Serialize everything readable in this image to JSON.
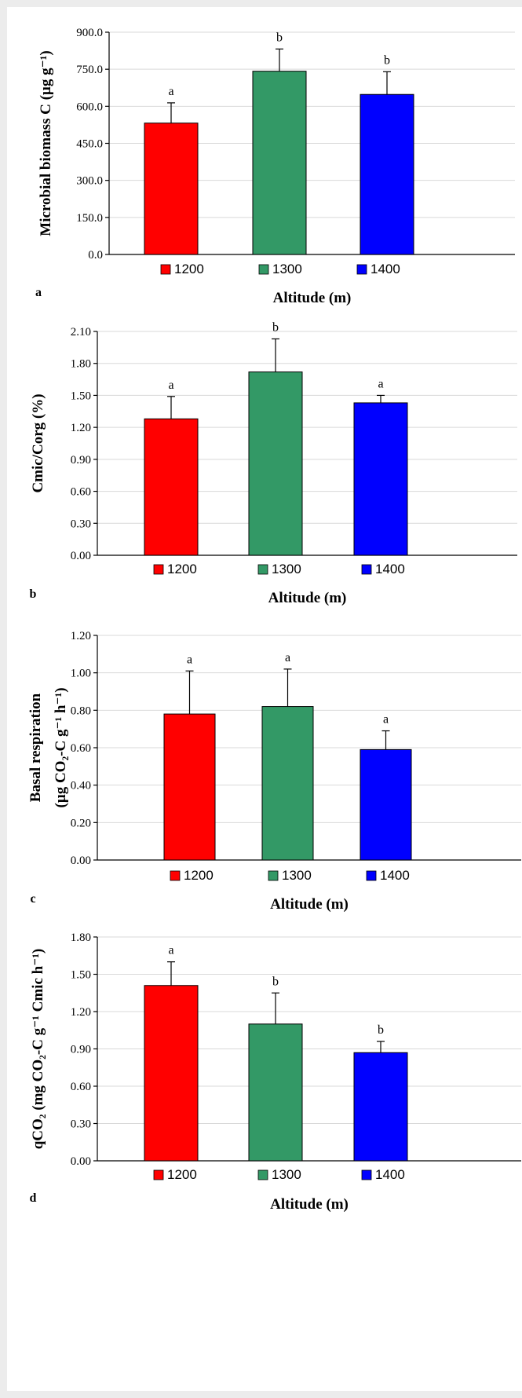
{
  "colors": {
    "1200": "#ff0000",
    "1300": "#339966",
    "1400": "#0000ff"
  },
  "chart_data": [
    {
      "type": "bar",
      "panel": "a",
      "categories": [
        "1200",
        "1300",
        "1400"
      ],
      "values": [
        532,
        742,
        648
      ],
      "errors": [
        82,
        90,
        92
      ],
      "significance": [
        "a",
        "b",
        "b"
      ],
      "ylim": [
        0,
        900
      ],
      "yticks": [
        "0.0",
        "150.0",
        "300.0",
        "450.0",
        "600.0",
        "750.0",
        "900.0"
      ],
      "ylabel": "Microbial biomass C (µg g⁻¹)",
      "xlabel": "Altitude (m)",
      "legend": [
        "1200",
        "1300",
        "1400"
      ],
      "grid": true
    },
    {
      "type": "bar",
      "panel": "b",
      "categories": [
        "1200",
        "1300",
        "1400"
      ],
      "values": [
        1.28,
        1.72,
        1.43
      ],
      "errors": [
        0.21,
        0.31,
        0.07
      ],
      "significance": [
        "a",
        "b",
        "a"
      ],
      "ylim": [
        0,
        2.1
      ],
      "yticks": [
        "0.00",
        "0.30",
        "0.60",
        "0.90",
        "1.20",
        "1.50",
        "1.80",
        "2.10"
      ],
      "ylabel": "Cmic/Corg (%)",
      "xlabel": "Altitude (m)",
      "legend": [
        "1200",
        "1300",
        "1400"
      ],
      "grid": true
    },
    {
      "type": "bar",
      "panel": "c",
      "categories": [
        "1200",
        "1300",
        "1400"
      ],
      "values": [
        0.78,
        0.82,
        0.59
      ],
      "errors": [
        0.23,
        0.2,
        0.1
      ],
      "significance": [
        "a",
        "a",
        "a"
      ],
      "ylim": [
        0,
        1.2
      ],
      "yticks": [
        "0.00",
        "0.20",
        "0.40",
        "0.60",
        "0.80",
        "1.00",
        "1.20"
      ],
      "ylabel": [
        "Basal respiration",
        "(µg CO₂-C g⁻¹ h⁻¹)"
      ],
      "xlabel": "Altitude (m)",
      "legend": [
        "1200",
        "1300",
        "1400"
      ],
      "grid": true
    },
    {
      "type": "bar",
      "panel": "d",
      "categories": [
        "1200",
        "1300",
        "1400"
      ],
      "values": [
        1.41,
        1.1,
        0.87
      ],
      "errors": [
        0.19,
        0.25,
        0.09
      ],
      "significance": [
        "a",
        "b",
        "b"
      ],
      "ylim": [
        0,
        1.8
      ],
      "yticks": [
        "0.00",
        "0.30",
        "0.60",
        "0.90",
        "1.20",
        "1.50",
        "1.80"
      ],
      "ylabel": "qCO₂ (mg CO₂-C g⁻¹ Cmic h⁻¹)",
      "xlabel": "Altitude (m)",
      "legend": [
        "1200",
        "1300",
        "1400"
      ],
      "grid": true
    }
  ]
}
